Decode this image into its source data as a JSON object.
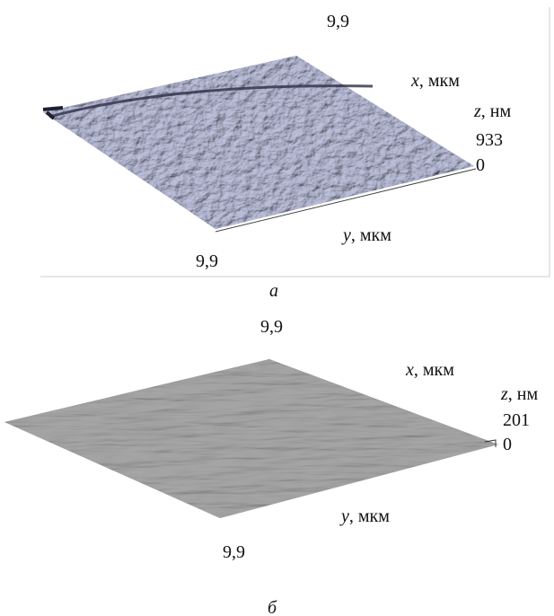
{
  "panels": [
    {
      "x_max": "9,9",
      "x_axis": {
        "symbol": "x",
        "unit": ", мкм"
      },
      "z_axis": {
        "symbol": "z",
        "unit": ", нм"
      },
      "z_max": "933",
      "z_min": "0",
      "y_axis": {
        "symbol": "y",
        "unit": ", мкм"
      },
      "y_max": "9,9",
      "caption": "а"
    },
    {
      "x_max": "9,9",
      "x_axis": {
        "symbol": "x",
        "unit": ", мкм"
      },
      "z_axis": {
        "symbol": "z",
        "unit": ", нм"
      },
      "z_max": "201",
      "z_min": "0",
      "y_axis": {
        "symbol": "y",
        "unit": ", мкм"
      },
      "y_max": "9,9",
      "caption": "б"
    }
  ]
}
